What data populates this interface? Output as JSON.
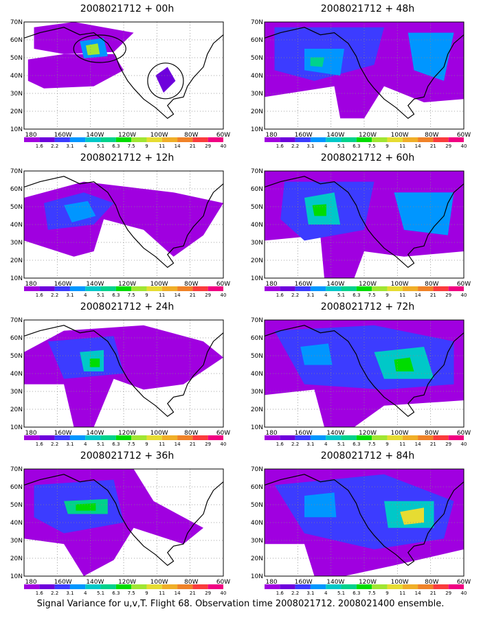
{
  "figure": {
    "caption": "Signal Variance for u,v,T. Flight 68. Observation time 2008021712. 2008021400 ensemble."
  },
  "axes": {
    "lat_ticks": [
      "70N",
      "60N",
      "50N",
      "40N",
      "30N",
      "20N",
      "10N"
    ],
    "lon_ticks": [
      "180",
      "160W",
      "140W",
      "120W",
      "100W",
      "80W",
      "60W"
    ]
  },
  "colorbar": {
    "labels": [
      "1.6",
      "2.2",
      "3.1",
      "4",
      "5.1",
      "6.3",
      "7.5",
      "9",
      "11",
      "14",
      "21",
      "29",
      "40"
    ],
    "colors": [
      "#a000e0",
      "#6e00dc",
      "#3c3cff",
      "#0096ff",
      "#00c8c8",
      "#00d28c",
      "#00dc00",
      "#a0e632",
      "#e6dc32",
      "#f0af28",
      "#f08228",
      "#fa3c3c",
      "#f00082"
    ]
  },
  "panels": [
    {
      "id": "p00",
      "title": "2008021712 + 00h"
    },
    {
      "id": "p48",
      "title": "2008021712 + 48h"
    },
    {
      "id": "p12",
      "title": "2008021712 + 12h"
    },
    {
      "id": "p60",
      "title": "2008021712 + 60h"
    },
    {
      "id": "p24",
      "title": "2008021712 + 24h"
    },
    {
      "id": "p72",
      "title": "2008021712 + 72h"
    },
    {
      "id": "p36",
      "title": "2008021712 + 36h"
    },
    {
      "id": "p84",
      "title": "2008021712 + 84h"
    }
  ]
}
